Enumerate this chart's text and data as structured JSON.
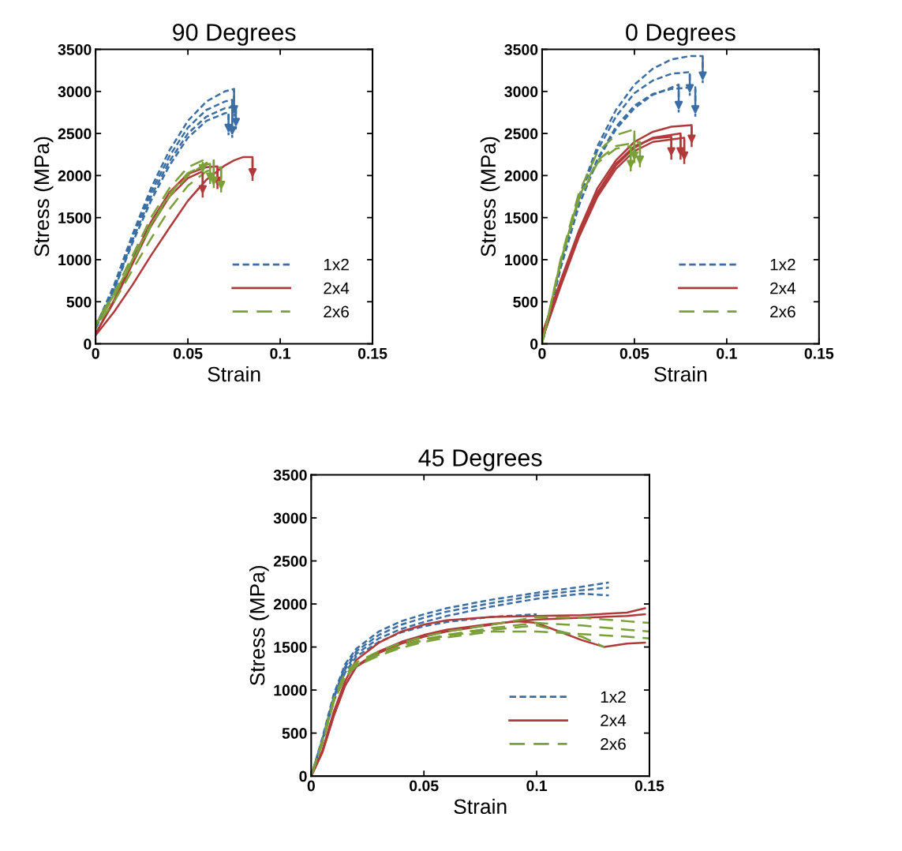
{
  "chart_data": [
    {
      "type": "line",
      "title": "90 Degrees",
      "xlabel": "Strain",
      "ylabel": "Stress (MPa)",
      "xlim": [
        0,
        0.15
      ],
      "ylim": [
        0,
        3500
      ],
      "xticks": [
        0,
        0.05,
        0.1,
        0.15
      ],
      "yticks": [
        0,
        500,
        1000,
        1500,
        2000,
        2500,
        3000,
        3500
      ],
      "grid": false,
      "legend": "bottom right",
      "marker": "none",
      "series": [
        {
          "name": "1x2",
          "color": "#3a6ea5",
          "line_style": "dotted",
          "x": [
            0,
            0.01,
            0.02,
            0.03,
            0.04,
            0.05,
            0.06,
            0.07,
            0.075,
            0.075
          ],
          "values": [
            200,
            700,
            1300,
            1850,
            2300,
            2650,
            2880,
            3000,
            3030,
            2700
          ]
        },
        {
          "color": "#3a6ea5",
          "line_style": "dotted",
          "x": [
            0,
            0.01,
            0.02,
            0.03,
            0.04,
            0.05,
            0.06,
            0.07,
            0.074,
            0.074
          ],
          "values": [
            200,
            680,
            1270,
            1800,
            2230,
            2570,
            2780,
            2880,
            2900,
            2450
          ]
        },
        {
          "color": "#3a6ea5",
          "line_style": "dotted",
          "x": [
            0,
            0.01,
            0.02,
            0.03,
            0.04,
            0.05,
            0.06,
            0.07,
            0.076,
            0.076
          ],
          "values": [
            180,
            650,
            1230,
            1750,
            2170,
            2500,
            2700,
            2800,
            2820,
            2550
          ]
        },
        {
          "color": "#3a6ea5",
          "line_style": "dotted",
          "x": [
            0,
            0.01,
            0.02,
            0.03,
            0.04,
            0.05,
            0.06,
            0.07,
            0.072,
            0.072
          ],
          "values": [
            180,
            640,
            1200,
            1700,
            2120,
            2450,
            2650,
            2740,
            2750,
            2480
          ]
        },
        {
          "name": "2x4",
          "color": "#b03a3a",
          "line_style": "solid",
          "x": [
            0,
            0.01,
            0.02,
            0.03,
            0.04,
            0.05,
            0.06,
            0.07,
            0.075,
            0.08,
            0.085,
            0.085
          ],
          "values": [
            100,
            380,
            700,
            1050,
            1380,
            1700,
            1950,
            2120,
            2180,
            2220,
            2220,
            1950
          ]
        },
        {
          "color": "#b03a3a",
          "line_style": "solid",
          "x": [
            0,
            0.01,
            0.02,
            0.03,
            0.04,
            0.05,
            0.06,
            0.066,
            0.066
          ],
          "values": [
            120,
            520,
            1000,
            1450,
            1800,
            2020,
            2100,
            2110,
            1850
          ]
        },
        {
          "color": "#b03a3a",
          "line_style": "solid",
          "x": [
            0,
            0.01,
            0.02,
            0.03,
            0.04,
            0.05,
            0.058,
            0.058
          ],
          "values": [
            120,
            500,
            950,
            1400,
            1750,
            1970,
            2050,
            1750
          ]
        },
        {
          "name": "2x6",
          "color": "#7ba03a",
          "line_style": "dashed",
          "x": [
            0,
            0.01,
            0.02,
            0.03,
            0.04,
            0.05,
            0.058,
            0.058
          ],
          "values": [
            250,
            600,
            1050,
            1500,
            1850,
            2100,
            2180,
            2000
          ]
        },
        {
          "color": "#7ba03a",
          "line_style": "dashed",
          "x": [
            0,
            0.01,
            0.02,
            0.03,
            0.04,
            0.05,
            0.06,
            0.064,
            0.064
          ],
          "values": [
            220,
            560,
            980,
            1400,
            1750,
            2000,
            2150,
            2200,
            1850
          ]
        },
        {
          "color": "#7ba03a",
          "line_style": "dashed",
          "x": [
            0,
            0.01,
            0.02,
            0.03,
            0.04,
            0.05,
            0.06,
            0.068,
            0.068
          ],
          "values": [
            200,
            500,
            880,
            1250,
            1600,
            1880,
            2050,
            2100,
            1800
          ]
        },
        {
          "color": "#7ba03a",
          "line_style": "dashed",
          "x": [
            0,
            0.01,
            0.02,
            0.03,
            0.04,
            0.05,
            0.06,
            0.062,
            0.062
          ],
          "values": [
            230,
            580,
            1000,
            1420,
            1780,
            2030,
            2130,
            2140,
            1900
          ]
        }
      ]
    },
    {
      "type": "line",
      "title": "0 Degrees",
      "xlabel": "Strain",
      "ylabel": "Stress (MPa)",
      "xlim": [
        0,
        0.15
      ],
      "ylim": [
        0,
        3500
      ],
      "xticks": [
        0,
        0.05,
        0.1,
        0.15
      ],
      "yticks": [
        0,
        500,
        1000,
        1500,
        2000,
        2500,
        3000,
        3500
      ],
      "grid": false,
      "legend": "bottom right",
      "marker": "none",
      "series": [
        {
          "name": "1x2",
          "color": "#3a6ea5",
          "line_style": "dotted",
          "x": [
            0,
            0.01,
            0.02,
            0.03,
            0.04,
            0.05,
            0.06,
            0.07,
            0.08,
            0.087,
            0.087
          ],
          "values": [
            0,
            950,
            1750,
            2350,
            2780,
            3080,
            3270,
            3380,
            3420,
            3420,
            3100
          ]
        },
        {
          "color": "#3a6ea5",
          "line_style": "dotted",
          "x": [
            0,
            0.01,
            0.02,
            0.03,
            0.04,
            0.05,
            0.06,
            0.07,
            0.08,
            0.08
          ],
          "values": [
            0,
            950,
            1720,
            2300,
            2700,
            2980,
            3130,
            3210,
            3230,
            2950
          ]
        },
        {
          "color": "#3a6ea5",
          "line_style": "dotted",
          "x": [
            0,
            0.01,
            0.02,
            0.03,
            0.04,
            0.05,
            0.06,
            0.07,
            0.083,
            0.083
          ],
          "values": [
            0,
            900,
            1650,
            2200,
            2580,
            2830,
            2970,
            3030,
            3050,
            2700
          ]
        },
        {
          "color": "#3a6ea5",
          "line_style": "dotted",
          "x": [
            0,
            0.01,
            0.02,
            0.03,
            0.04,
            0.05,
            0.06,
            0.074,
            0.074
          ],
          "values": [
            0,
            900,
            1650,
            2180,
            2550,
            2800,
            2960,
            3080,
            2750
          ]
        },
        {
          "name": "2x4",
          "color": "#b03a3a",
          "line_style": "solid",
          "x": [
            0,
            0.01,
            0.02,
            0.03,
            0.04,
            0.05,
            0.06,
            0.07,
            0.081,
            0.081
          ],
          "values": [
            120,
            750,
            1350,
            1850,
            2180,
            2400,
            2520,
            2580,
            2600,
            2350
          ]
        },
        {
          "color": "#b03a3a",
          "line_style": "solid",
          "x": [
            0,
            0.01,
            0.02,
            0.03,
            0.04,
            0.05,
            0.06,
            0.075,
            0.075
          ],
          "values": [
            50,
            700,
            1300,
            1780,
            2120,
            2330,
            2450,
            2500,
            2200
          ]
        },
        {
          "color": "#b03a3a",
          "line_style": "solid",
          "x": [
            0,
            0.01,
            0.02,
            0.03,
            0.04,
            0.05,
            0.06,
            0.077,
            0.077
          ],
          "values": [
            50,
            680,
            1270,
            1750,
            2080,
            2290,
            2400,
            2450,
            2150
          ]
        },
        {
          "color": "#b03a3a",
          "line_style": "solid",
          "x": [
            0,
            0.01,
            0.02,
            0.03,
            0.04,
            0.05,
            0.06,
            0.07,
            0.07
          ],
          "values": [
            50,
            720,
            1320,
            1800,
            2140,
            2350,
            2440,
            2460,
            2200
          ]
        },
        {
          "name": "2x6",
          "color": "#7ba03a",
          "line_style": "dashed",
          "x": [
            0,
            0.01,
            0.02,
            0.03,
            0.04,
            0.05,
            0.05
          ],
          "values": [
            0,
            1000,
            1800,
            2280,
            2480,
            2550,
            2150
          ]
        },
        {
          "color": "#7ba03a",
          "line_style": "dashed",
          "x": [
            0,
            0.01,
            0.02,
            0.03,
            0.04,
            0.053,
            0.053
          ],
          "values": [
            0,
            980,
            1750,
            2180,
            2350,
            2400,
            2100
          ]
        },
        {
          "color": "#7ba03a",
          "line_style": "dashed",
          "x": [
            0,
            0.01,
            0.02,
            0.03,
            0.04,
            0.048,
            0.048
          ],
          "values": [
            0,
            960,
            1720,
            2150,
            2320,
            2350,
            2050
          ]
        }
      ]
    },
    {
      "type": "line",
      "title": "45 Degrees",
      "xlabel": "Strain",
      "ylabel": "Stress (MPa)",
      "xlim": [
        0,
        0.15
      ],
      "ylim": [
        0,
        3500
      ],
      "xticks": [
        0,
        0.05,
        0.1,
        0.15
      ],
      "yticks": [
        0,
        500,
        1000,
        1500,
        2000,
        2500,
        3000,
        3500
      ],
      "grid": false,
      "legend": "bottom right",
      "marker": "none",
      "series": [
        {
          "name": "1x2",
          "color": "#3a6ea5",
          "line_style": "dotted",
          "x": [
            0,
            0.005,
            0.01,
            0.015,
            0.02,
            0.03,
            0.04,
            0.05,
            0.06,
            0.08,
            0.1,
            0.12,
            0.132
          ],
          "values": [
            0,
            450,
            950,
            1300,
            1480,
            1680,
            1800,
            1880,
            1950,
            2050,
            2130,
            2200,
            2250
          ]
        },
        {
          "color": "#3a6ea5",
          "line_style": "dotted",
          "x": [
            0,
            0.005,
            0.01,
            0.015,
            0.02,
            0.03,
            0.04,
            0.05,
            0.06,
            0.08,
            0.1,
            0.12,
            0.132
          ],
          "values": [
            0,
            430,
            920,
            1270,
            1450,
            1640,
            1760,
            1840,
            1910,
            2010,
            2100,
            2160,
            2190
          ]
        },
        {
          "color": "#3a6ea5",
          "line_style": "dotted",
          "x": [
            0,
            0.005,
            0.01,
            0.015,
            0.02,
            0.03,
            0.04,
            0.05,
            0.06,
            0.08,
            0.1,
            0.12,
            0.132
          ],
          "values": [
            0,
            420,
            900,
            1240,
            1420,
            1600,
            1710,
            1790,
            1860,
            1970,
            2060,
            2120,
            2100
          ]
        },
        {
          "color": "#3a6ea5",
          "line_style": "dotted",
          "x": [
            0,
            0.005,
            0.01,
            0.015,
            0.02,
            0.03,
            0.04,
            0.05,
            0.06,
            0.08,
            0.1
          ],
          "values": [
            0,
            400,
            870,
            1200,
            1390,
            1560,
            1670,
            1740,
            1790,
            1850,
            1880
          ]
        },
        {
          "name": "2x4",
          "color": "#b03a3a",
          "line_style": "solid",
          "x": [
            0,
            0.005,
            0.01,
            0.015,
            0.02,
            0.03,
            0.04,
            0.05,
            0.06,
            0.08,
            0.1,
            0.12,
            0.14,
            0.148
          ],
          "values": [
            0,
            300,
            750,
            1100,
            1350,
            1550,
            1680,
            1760,
            1810,
            1850,
            1860,
            1870,
            1900,
            1950
          ]
        },
        {
          "color": "#b03a3a",
          "line_style": "solid",
          "x": [
            0,
            0.005,
            0.01,
            0.015,
            0.02,
            0.03,
            0.04,
            0.05,
            0.06,
            0.08,
            0.1,
            0.12,
            0.14,
            0.148
          ],
          "values": [
            0,
            280,
            700,
            1050,
            1280,
            1450,
            1560,
            1640,
            1700,
            1770,
            1820,
            1840,
            1860,
            1880
          ]
        },
        {
          "color": "#b03a3a",
          "line_style": "solid",
          "x": [
            0,
            0.005,
            0.01,
            0.015,
            0.02,
            0.03,
            0.04,
            0.05,
            0.06,
            0.08,
            0.09,
            0.1,
            0.11,
            0.12,
            0.13,
            0.14,
            0.148
          ],
          "values": [
            0,
            280,
            700,
            1050,
            1270,
            1430,
            1540,
            1620,
            1680,
            1760,
            1800,
            1780,
            1680,
            1580,
            1500,
            1540,
            1550
          ]
        },
        {
          "name": "2x6",
          "color": "#7ba03a",
          "line_style": "dashed",
          "x": [
            0,
            0.005,
            0.01,
            0.015,
            0.02,
            0.03,
            0.04,
            0.05,
            0.06,
            0.08,
            0.1,
            0.12,
            0.14,
            0.15
          ],
          "values": [
            0,
            420,
            900,
            1200,
            1320,
            1450,
            1550,
            1620,
            1680,
            1760,
            1850,
            1840,
            1800,
            1780
          ]
        },
        {
          "color": "#7ba03a",
          "line_style": "dashed",
          "x": [
            0,
            0.005,
            0.01,
            0.015,
            0.02,
            0.03,
            0.04,
            0.05,
            0.06,
            0.08,
            0.1,
            0.12,
            0.14,
            0.15
          ],
          "values": [
            0,
            400,
            880,
            1180,
            1300,
            1420,
            1520,
            1590,
            1640,
            1720,
            1780,
            1750,
            1700,
            1680
          ]
        },
        {
          "color": "#7ba03a",
          "line_style": "dashed",
          "x": [
            0,
            0.005,
            0.01,
            0.015,
            0.02,
            0.03,
            0.04,
            0.05,
            0.06,
            0.08,
            0.1,
            0.12,
            0.14,
            0.15
          ],
          "values": [
            0,
            380,
            860,
            1150,
            1280,
            1400,
            1490,
            1560,
            1610,
            1680,
            1680,
            1650,
            1620,
            1600
          ]
        },
        {
          "color": "#7ba03a",
          "line_style": "dashed",
          "x": [
            0,
            0.005,
            0.01,
            0.015,
            0.02,
            0.03,
            0.04,
            0.05,
            0.06,
            0.08,
            0.1,
            0.12,
            0.13
          ],
          "values": [
            0,
            400,
            870,
            1160,
            1290,
            1410,
            1500,
            1580,
            1630,
            1700,
            1750,
            1620,
            1500
          ]
        }
      ]
    }
  ]
}
